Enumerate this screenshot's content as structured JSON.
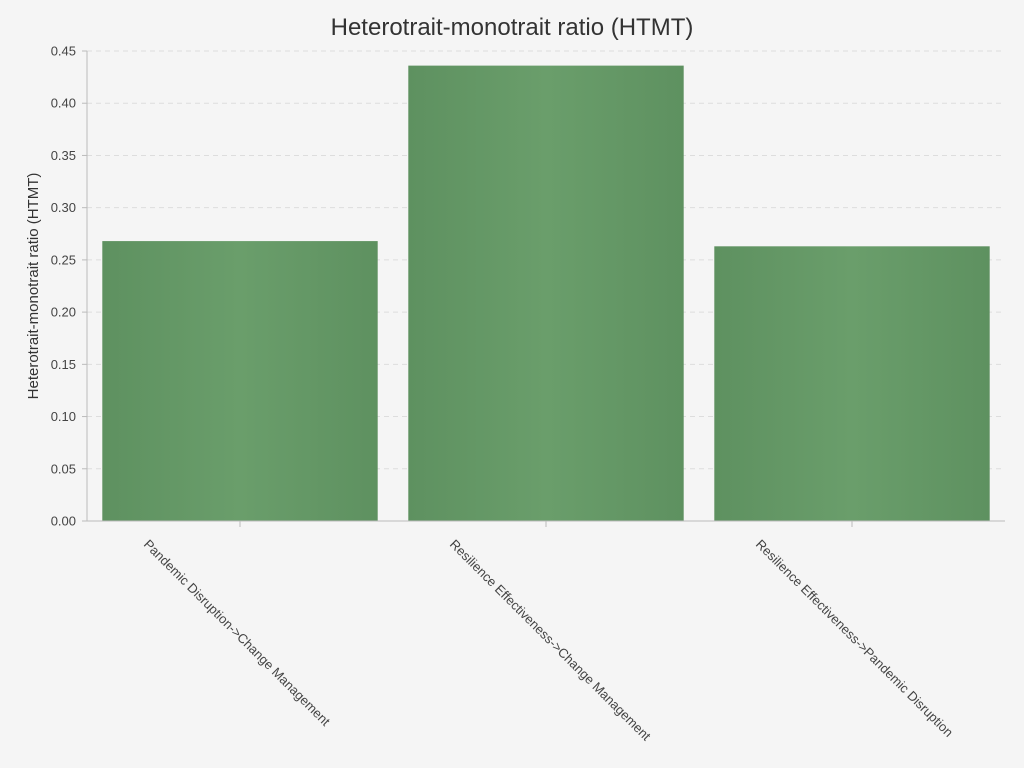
{
  "chart_data": {
    "type": "bar",
    "title": "Heterotrait-monotrait ratio (HTMT)",
    "xlabel": "",
    "ylabel": "Heterotrait-monotrait ratio (HTMT)",
    "categories": [
      "Pandemic Disruption->Change Management",
      "Resilience Effectiveness->Change Management",
      "Resilience Effectiveness->Pandemic Disruption"
    ],
    "values": [
      0.268,
      0.436,
      0.263
    ],
    "ylim": [
      0,
      0.45
    ],
    "yticks": [
      "0.00",
      "0.05",
      "0.10",
      "0.15",
      "0.20",
      "0.25",
      "0.30",
      "0.35",
      "0.40",
      "0.45"
    ],
    "grid": true,
    "legend": "none",
    "colors": {
      "bar_edge": "#5e9160",
      "bar_center": "#6a9e6b",
      "grid": "#dddddd",
      "axis": "#bbbbbb",
      "background": "#f5f5f5"
    }
  }
}
